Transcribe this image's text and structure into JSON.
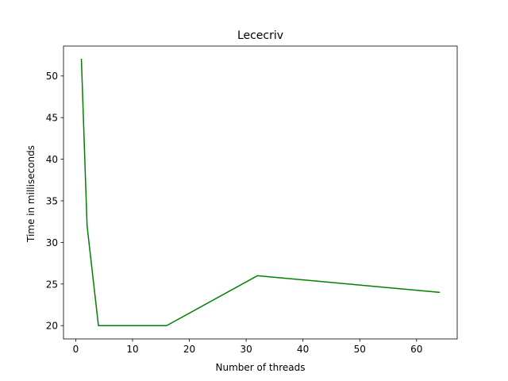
{
  "chart_data": {
    "type": "line",
    "title": "Lececriv",
    "xlabel": "Number of threads",
    "ylabel": "Time in milliseconds",
    "xlim": [
      -2.15,
      67.15
    ],
    "ylim": [
      18.4,
      53.6
    ],
    "xticks": [
      0,
      10,
      20,
      30,
      40,
      50,
      60
    ],
    "yticks": [
      20,
      25,
      30,
      35,
      40,
      45,
      50
    ],
    "grid": false,
    "legend": "none",
    "series": [
      {
        "color": "#008000",
        "x": [
          1,
          2,
          4,
          8,
          16,
          32,
          64
        ],
        "y": [
          52,
          32,
          20,
          20,
          20,
          26,
          24
        ]
      }
    ]
  }
}
